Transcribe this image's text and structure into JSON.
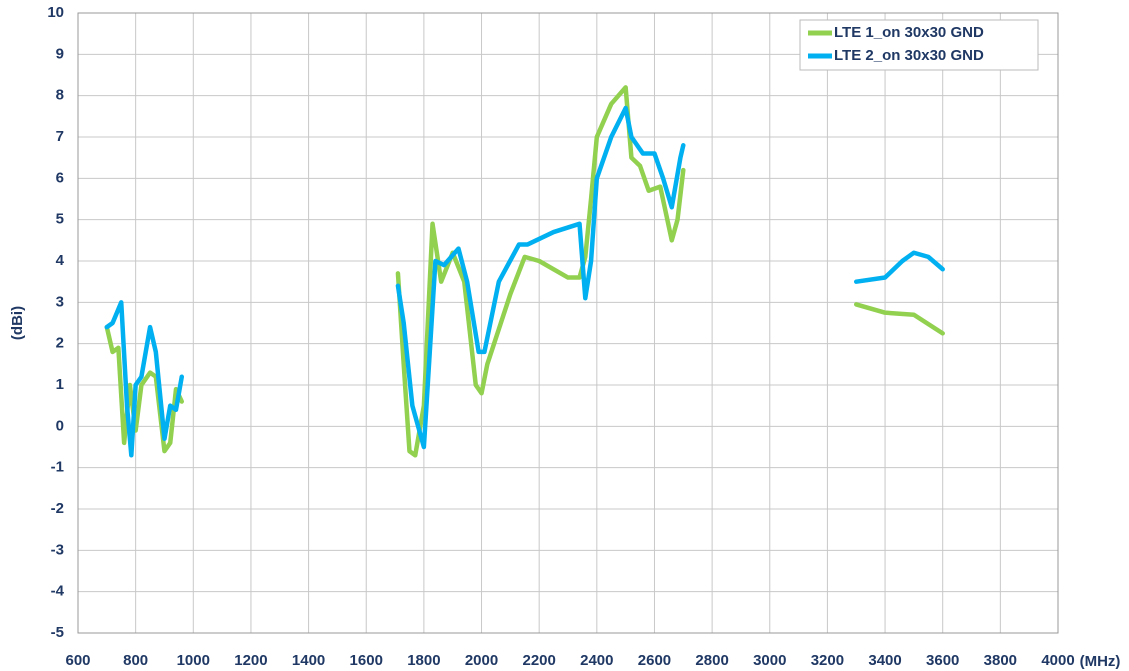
{
  "chart_data": {
    "type": "line",
    "xlabel": "(MHz)",
    "ylabel": "(dBi)",
    "xlim": [
      600,
      4000
    ],
    "ylim": [
      -5,
      10
    ],
    "xticks": [
      600,
      800,
      1000,
      1200,
      1400,
      1600,
      1800,
      2000,
      2200,
      2400,
      2600,
      2800,
      3000,
      3200,
      3400,
      3600,
      3800,
      4000
    ],
    "yticks": [
      -5,
      -4,
      -3,
      -2,
      -1,
      0,
      1,
      2,
      3,
      4,
      5,
      6,
      7,
      8,
      9,
      10
    ],
    "grid": true,
    "legend": "upper right",
    "series": [
      {
        "name": "LTE 1_on 30x30 GND",
        "color": "#92d050",
        "x": [
          700,
          720,
          740,
          760,
          780,
          800,
          820,
          850,
          870,
          900,
          920,
          940,
          960,
          null,
          1710,
          1730,
          1750,
          1770,
          1800,
          1830,
          1860,
          1900,
          1940,
          1980,
          2000,
          2020,
          2100,
          2150,
          2200,
          2300,
          2340,
          2360,
          2380,
          2400,
          2450,
          2500,
          2520,
          2550,
          2580,
          2620,
          2660,
          2680,
          2700,
          null,
          3300,
          3400,
          3500,
          3600
        ],
        "values": [
          2.4,
          1.8,
          1.9,
          -0.4,
          1.0,
          -0.1,
          1.0,
          1.3,
          1.2,
          -0.6,
          -0.4,
          0.9,
          0.6,
          null,
          3.7,
          1.5,
          -0.6,
          -0.7,
          0.5,
          4.9,
          3.5,
          4.2,
          3.5,
          1.0,
          0.8,
          1.5,
          3.2,
          4.1,
          4.0,
          3.6,
          3.6,
          4.1,
          5.5,
          7.0,
          7.8,
          8.2,
          6.5,
          6.3,
          5.7,
          5.8,
          4.5,
          5.0,
          6.2,
          null,
          2.95,
          2.75,
          2.7,
          2.25
        ]
      },
      {
        "name": "LTE 2_on 30x30 GND",
        "color": "#00b0f0",
        "x": [
          700,
          720,
          750,
          770,
          785,
          800,
          820,
          850,
          870,
          900,
          920,
          940,
          960,
          null,
          1710,
          1730,
          1760,
          1800,
          1840,
          1870,
          1920,
          1950,
          1990,
          2010,
          2060,
          2130,
          2160,
          2250,
          2340,
          2360,
          2380,
          2400,
          2450,
          2500,
          2520,
          2560,
          2600,
          2630,
          2660,
          2690,
          2700,
          null,
          3300,
          3400,
          3460,
          3500,
          3550,
          3600
        ],
        "values": [
          2.4,
          2.5,
          3.0,
          0.5,
          -0.7,
          1.0,
          1.2,
          2.4,
          1.8,
          -0.3,
          0.5,
          0.4,
          1.2,
          null,
          3.4,
          2.5,
          0.5,
          -0.5,
          4.0,
          3.9,
          4.3,
          3.5,
          1.8,
          1.8,
          3.5,
          4.4,
          4.4,
          4.7,
          4.9,
          3.1,
          4.0,
          6.0,
          7.0,
          7.7,
          7.0,
          6.6,
          6.6,
          6.0,
          5.3,
          6.5,
          6.8,
          null,
          3.5,
          3.6,
          4.0,
          4.2,
          4.1,
          3.8
        ]
      }
    ]
  }
}
